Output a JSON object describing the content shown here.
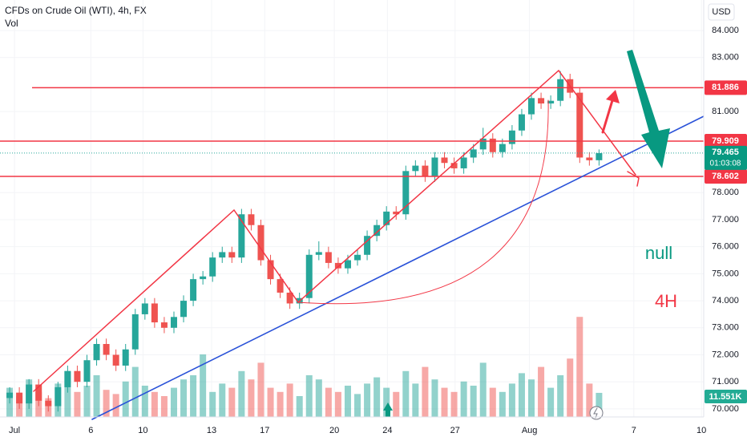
{
  "chart_data": {
    "type": "candlestick",
    "title": "CFDs on Crude Oil (WTI), 4h, FX",
    "subtitle": "Vol",
    "currency": "USD",
    "up_color": "#26a69a",
    "down_color": "#ef5350",
    "level_color": "#f23645",
    "x": [
      1,
      2,
      3,
      4,
      5,
      6,
      7,
      8,
      9,
      10,
      11,
      12,
      13,
      14,
      15,
      16,
      17,
      18,
      19,
      20,
      21,
      22,
      23,
      24,
      25,
      26,
      27,
      28,
      29,
      30,
      31,
      32,
      33,
      34,
      35,
      36,
      37,
      38,
      39,
      40,
      41,
      42,
      43,
      44,
      45,
      46,
      47,
      48,
      49,
      50,
      51,
      52,
      53,
      54,
      55,
      56,
      57,
      58,
      59,
      60,
      61,
      62
    ],
    "open": [
      70.4,
      70.6,
      70.2,
      70.9,
      70.3,
      70.1,
      70.8,
      71.4,
      71.0,
      71.8,
      72.4,
      72.0,
      71.6,
      72.2,
      73.5,
      73.9,
      73.2,
      73.0,
      73.4,
      74.0,
      74.8,
      74.9,
      75.6,
      75.8,
      75.6,
      77.2,
      76.8,
      75.5,
      74.8,
      74.3,
      73.9,
      74.1,
      75.7,
      75.8,
      75.4,
      75.2,
      75.5,
      75.7,
      76.4,
      76.8,
      77.3,
      77.2,
      78.8,
      79.0,
      78.6,
      79.3,
      79.1,
      78.9,
      79.3,
      79.6,
      80.0,
      79.5,
      79.8,
      80.3,
      80.9,
      81.5,
      81.3,
      81.4,
      82.2,
      81.7,
      79.3,
      79.2
    ],
    "high": [
      70.8,
      70.8,
      71.1,
      71.1,
      70.5,
      71.0,
      71.6,
      71.6,
      72.0,
      72.6,
      72.6,
      72.2,
      72.4,
      73.7,
      74.1,
      74.1,
      73.4,
      73.6,
      74.2,
      75.0,
      75.1,
      75.8,
      76.0,
      76.0,
      77.4,
      77.4,
      77.0,
      75.7,
      75.0,
      74.5,
      74.3,
      75.9,
      76.2,
      76.0,
      75.6,
      75.7,
      75.9,
      76.6,
      77.0,
      77.5,
      77.5,
      79.0,
      79.2,
      79.2,
      79.5,
      79.5,
      79.3,
      79.5,
      79.8,
      80.4,
      80.2,
      80.0,
      80.5,
      81.1,
      81.7,
      81.7,
      81.6,
      82.5,
      82.4,
      81.9,
      79.5,
      79.6
    ],
    "low": [
      70.2,
      70.0,
      70.0,
      70.1,
      69.9,
      69.9,
      70.6,
      70.8,
      70.8,
      71.6,
      71.8,
      71.4,
      71.4,
      72.0,
      73.3,
      73.0,
      72.8,
      72.8,
      73.2,
      73.8,
      74.6,
      74.7,
      75.4,
      75.4,
      75.4,
      76.6,
      75.3,
      74.6,
      74.1,
      73.7,
      73.7,
      73.9,
      75.5,
      75.2,
      75.0,
      75.0,
      75.3,
      75.5,
      76.2,
      76.6,
      77.0,
      77.0,
      78.6,
      78.4,
      78.4,
      78.9,
      78.7,
      78.7,
      79.1,
      79.4,
      79.3,
      79.3,
      79.6,
      80.1,
      80.7,
      81.1,
      81.1,
      81.2,
      81.5,
      79.1,
      79.0,
      79.0
    ],
    "close": [
      70.6,
      70.2,
      70.9,
      70.3,
      70.1,
      70.8,
      71.4,
      71.0,
      71.8,
      72.4,
      72.0,
      71.6,
      72.2,
      73.5,
      73.9,
      73.2,
      73.0,
      73.4,
      74.0,
      74.8,
      74.9,
      75.6,
      75.8,
      75.6,
      77.2,
      76.8,
      75.5,
      74.8,
      74.3,
      73.9,
      74.1,
      75.7,
      75.8,
      75.4,
      75.2,
      75.5,
      75.7,
      76.4,
      76.8,
      77.3,
      77.2,
      78.8,
      79.0,
      78.6,
      79.3,
      79.1,
      78.9,
      79.3,
      79.6,
      80.0,
      79.5,
      79.8,
      80.3,
      80.9,
      81.5,
      81.3,
      81.4,
      82.2,
      81.7,
      79.3,
      79.2,
      79.465
    ],
    "volume": {
      "values": [
        14,
        10,
        18,
        12,
        9,
        16,
        22,
        12,
        15,
        20,
        13,
        11,
        17,
        24,
        15,
        12,
        10,
        14,
        18,
        20,
        30,
        12,
        16,
        14,
        22,
        18,
        26,
        14,
        12,
        16,
        10,
        20,
        18,
        14,
        12,
        15,
        11,
        16,
        19,
        14,
        12,
        22,
        16,
        24,
        18,
        14,
        12,
        17,
        15,
        26,
        14,
        12,
        16,
        21,
        18,
        24,
        14,
        20,
        28,
        48,
        16,
        11.551
      ],
      "value_label": "11.551K",
      "vlim": [
        0,
        50
      ]
    },
    "xlim": [
      0,
      73
    ],
    "xticks": [
      {
        "value": 1.5,
        "label": "Jul"
      },
      {
        "value": 9.4,
        "label": "6"
      },
      {
        "value": 14.8,
        "label": "10"
      },
      {
        "value": 21.9,
        "label": "13"
      },
      {
        "value": 27.4,
        "label": "17"
      },
      {
        "value": 34.6,
        "label": "20"
      },
      {
        "value": 40.1,
        "label": "24"
      },
      {
        "value": 47.1,
        "label": "27"
      },
      {
        "value": 54.8,
        "label": "Aug"
      },
      {
        "value": 65.6,
        "label": "7"
      },
      {
        "value": 72.6,
        "label": "10"
      }
    ],
    "ylim": [
      69.7,
      85.13
    ],
    "yticks": [
      {
        "value": 70,
        "label": "70.000"
      },
      {
        "value": 71,
        "label": "71.000"
      },
      {
        "value": 72,
        "label": "72.000"
      },
      {
        "value": 73,
        "label": "73.000"
      },
      {
        "value": 74,
        "label": "74.000"
      },
      {
        "value": 75,
        "label": "75.000"
      },
      {
        "value": 76,
        "label": "76.000"
      },
      {
        "value": 77,
        "label": "77.000"
      },
      {
        "value": 78,
        "label": "78.000"
      },
      {
        "value": 81,
        "label": "81.000"
      },
      {
        "value": 83,
        "label": "83.000"
      },
      {
        "value": 84,
        "label": "84.000"
      }
    ],
    "levels": [
      {
        "value": 81.886,
        "label": "81.886"
      },
      {
        "value": 79.909,
        "label": "79.909"
      },
      {
        "value": 78.602,
        "label": "78.602"
      }
    ],
    "last_price": {
      "value": 79.465,
      "label": "79.465"
    },
    "countdown": "01:03:08",
    "annotations": [
      "null",
      "4H"
    ]
  }
}
